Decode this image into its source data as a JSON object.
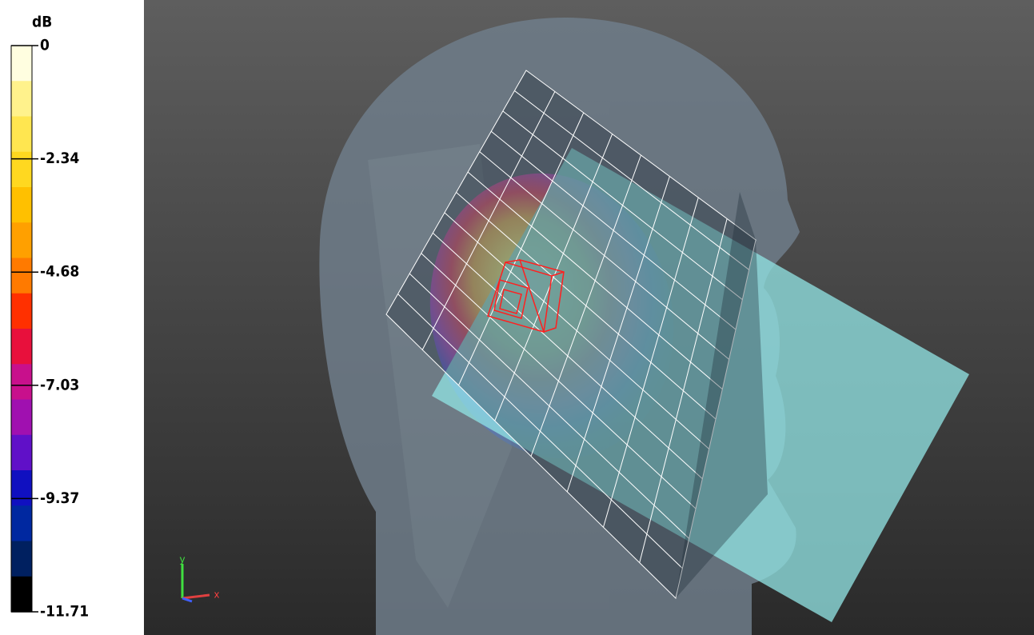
{
  "colorbar": {
    "unit": "dB",
    "ticks": [
      "0",
      "-2.34",
      "-4.68",
      "-7.03",
      "-9.37",
      "-11.71"
    ]
  },
  "axes": {
    "x": "x",
    "y": "y"
  }
}
